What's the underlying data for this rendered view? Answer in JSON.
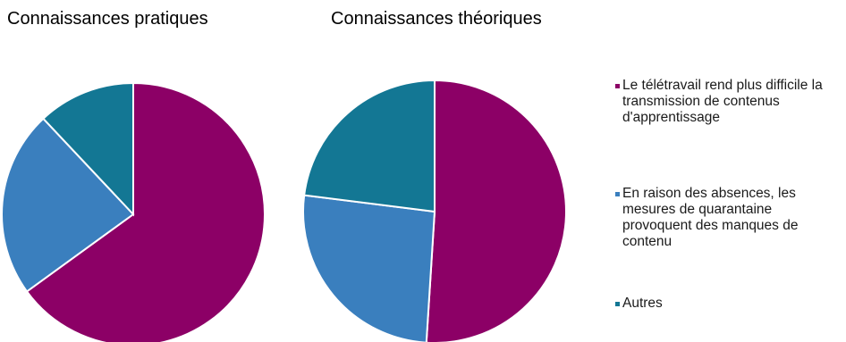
{
  "chart_data": [
    {
      "type": "pie",
      "title": "Connaissances pratiques",
      "labels": [
        "Le télétravail rend plus difficile la transmission de contenus d'apprentissage",
        "En raison des absences, les mesures de quarantaine provoquent des manques de contenu",
        "Autres"
      ],
      "values": [
        65,
        23,
        12
      ],
      "colors": [
        "#8c0066",
        "#3a7fbe",
        "#137794"
      ]
    },
    {
      "type": "pie",
      "title": "Connaissances théoriques",
      "labels": [
        "Le télétravail rend plus difficile la transmission de contenus d'apprentissage",
        "En raison des absences, les mesures de quarantaine provoquent des manques de contenu",
        "Autres"
      ],
      "values": [
        51,
        26,
        23
      ],
      "colors": [
        "#8c0066",
        "#3a7fbe",
        "#137794"
      ]
    }
  ],
  "legend": {
    "placement": "right",
    "items": [
      {
        "label": "Le télétravail rend plus difficile la transmission de contenus d'apprentissage",
        "color": "#8c0066"
      },
      {
        "label": "En raison des absences, les mesures de quarantaine provoquent des manques de contenu",
        "color": "#3a7fbe"
      },
      {
        "label": "Autres",
        "color": "#137794"
      }
    ]
  }
}
